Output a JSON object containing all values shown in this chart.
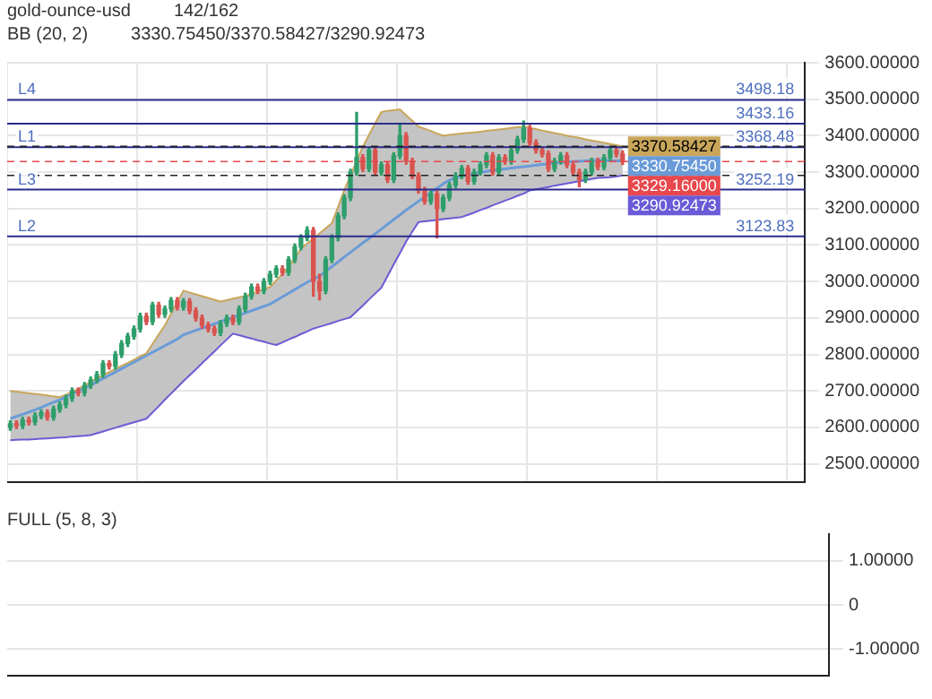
{
  "chart_data": [
    {
      "type": "candlestick",
      "annotations": [
        "gold-ounce-usd",
        "142/162",
        "BB (20, 2)",
        "3330.75450/3370.58427/3290.92473",
        {
          "text": "3498.18",
          "y": 3498.18
        },
        {
          "text": "3433.16",
          "y": 3433.16
        },
        {
          "text": "3368.48",
          "y": 3368.48
        },
        {
          "text": "3252.19",
          "y": 3252.19
        },
        {
          "text": "3123.83",
          "y": 3123.83
        }
      ],
      "categories": [
        null,
        null,
        null,
        null,
        null,
        null,
        null,
        null,
        null,
        null,
        null,
        null,
        null,
        null,
        null,
        null,
        null,
        null,
        null,
        null,
        null,
        null,
        null,
        null,
        null,
        null,
        null,
        null,
        null,
        null,
        null,
        null,
        null,
        null,
        null,
        null,
        null,
        null,
        null,
        null,
        null,
        null,
        null,
        null,
        null,
        null,
        null,
        null,
        null,
        null,
        null,
        null,
        null,
        null,
        null,
        null,
        null,
        null,
        null,
        null,
        null,
        null,
        null,
        null,
        null,
        null,
        null,
        null,
        null,
        null,
        null,
        null,
        null,
        null,
        null,
        null,
        null,
        null,
        null,
        null,
        null,
        null,
        null,
        null,
        null,
        null,
        null,
        null,
        null,
        null,
        null,
        null,
        null,
        null,
        null,
        null,
        null,
        null,
        null,
        null,
        null,
        null,
        null,
        null,
        null,
        null,
        null,
        null,
        null,
        null,
        null,
        null,
        null,
        null,
        null,
        null,
        null,
        null,
        null,
        null,
        null,
        null,
        null,
        null,
        null,
        null,
        null,
        null,
        null
      ],
      "ohlc": [
        [
          2600,
          2618,
          2592,
          2610
        ],
        [
          2610,
          2618,
          2597,
          2605
        ],
        [
          2605,
          2628,
          2597,
          2620
        ],
        [
          2620,
          2628,
          2607,
          2615
        ],
        [
          2615,
          2640,
          2607,
          2632
        ],
        [
          2632,
          2648,
          2624,
          2640
        ],
        [
          2640,
          2648,
          2620,
          2628
        ],
        [
          2628,
          2658,
          2620,
          2650
        ],
        [
          2650,
          2670,
          2642,
          2662
        ],
        [
          2662,
          2688,
          2654,
          2680
        ],
        [
          2680,
          2708,
          2672,
          2700
        ],
        [
          2700,
          2708,
          2687,
          2695
        ],
        [
          2695,
          2723,
          2687,
          2715
        ],
        [
          2715,
          2738,
          2707,
          2730
        ],
        [
          2730,
          2753,
          2722,
          2745
        ],
        [
          2745,
          2783,
          2737,
          2775
        ],
        [
          2775,
          2783,
          2760,
          2768
        ],
        [
          2768,
          2808,
          2760,
          2800
        ],
        [
          2800,
          2838,
          2792,
          2830
        ],
        [
          2830,
          2858,
          2822,
          2850
        ],
        [
          2850,
          2878,
          2842,
          2870
        ],
        [
          2870,
          2913,
          2862,
          2905
        ],
        [
          2905,
          2913,
          2882,
          2890
        ],
        [
          2890,
          2943,
          2882,
          2935
        ],
        [
          2935,
          2943,
          2902,
          2910
        ],
        [
          2910,
          2933,
          2902,
          2925
        ],
        [
          2925,
          2956,
          2917,
          2948
        ],
        [
          2948,
          2956,
          2922,
          2930
        ],
        [
          2930,
          2953,
          2922,
          2945
        ],
        [
          2945,
          2953,
          2912,
          2920
        ],
        [
          2920,
          2928,
          2892,
          2900
        ],
        [
          2900,
          2908,
          2872,
          2880
        ],
        [
          2880,
          2888,
          2862,
          2870
        ],
        [
          2870,
          2878,
          2852,
          2860
        ],
        [
          2860,
          2893,
          2852,
          2885
        ],
        [
          2885,
          2908,
          2877,
          2900
        ],
        [
          2900,
          2908,
          2882,
          2890
        ],
        [
          2890,
          2933,
          2882,
          2925
        ],
        [
          2925,
          2968,
          2917,
          2960
        ],
        [
          2960,
          2993,
          2952,
          2985
        ],
        [
          2985,
          2993,
          2967,
          2975
        ],
        [
          2975,
          3008,
          2967,
          3000
        ],
        [
          3000,
          3028,
          2992,
          3020
        ],
        [
          3020,
          3043,
          3012,
          3035
        ],
        [
          3035,
          3043,
          3017,
          3025
        ],
        [
          3025,
          3068,
          3017,
          3060
        ],
        [
          3060,
          3103,
          3052,
          3095
        ],
        [
          3095,
          3128,
          3087,
          3120
        ],
        [
          3120,
          3150,
          3112,
          3140
        ],
        [
          3140,
          3148,
          2960,
          3000
        ],
        [
          3000,
          3020,
          2950,
          2975
        ],
        [
          2975,
          3068,
          2967,
          3060
        ],
        [
          3060,
          3128,
          3052,
          3120
        ],
        [
          3120,
          3188,
          3112,
          3180
        ],
        [
          3180,
          3238,
          3172,
          3230
        ],
        [
          3230,
          3308,
          3222,
          3300
        ],
        [
          3300,
          3464,
          3292,
          3340
        ],
        [
          3340,
          3348,
          3302,
          3310
        ],
        [
          3310,
          3368,
          3302,
          3360
        ],
        [
          3360,
          3368,
          3292,
          3300
        ],
        [
          3300,
          3328,
          3292,
          3320
        ],
        [
          3320,
          3328,
          3272,
          3280
        ],
        [
          3280,
          3353,
          3272,
          3345
        ],
        [
          3345,
          3433,
          3337,
          3400
        ],
        [
          3400,
          3408,
          3322,
          3330
        ],
        [
          3330,
          3338,
          3282,
          3290
        ],
        [
          3290,
          3298,
          3242,
          3250
        ],
        [
          3250,
          3258,
          3212,
          3220
        ],
        [
          3220,
          3248,
          3212,
          3240
        ],
        [
          3240,
          3248,
          3120,
          3200
        ],
        [
          3200,
          3238,
          3192,
          3230
        ],
        [
          3230,
          3273,
          3222,
          3265
        ],
        [
          3265,
          3298,
          3257,
          3290
        ],
        [
          3290,
          3318,
          3282,
          3310
        ],
        [
          3310,
          3318,
          3267,
          3275
        ],
        [
          3275,
          3308,
          3267,
          3300
        ],
        [
          3300,
          3328,
          3292,
          3320
        ],
        [
          3320,
          3353,
          3312,
          3345
        ],
        [
          3345,
          3353,
          3292,
          3300
        ],
        [
          3300,
          3348,
          3292,
          3340
        ],
        [
          3340,
          3348,
          3322,
          3330
        ],
        [
          3330,
          3368,
          3322,
          3360
        ],
        [
          3360,
          3398,
          3352,
          3390
        ],
        [
          3390,
          3440,
          3382,
          3420
        ],
        [
          3420,
          3428,
          3372,
          3380
        ],
        [
          3380,
          3388,
          3352,
          3360
        ],
        [
          3360,
          3368,
          3342,
          3350
        ],
        [
          3350,
          3358,
          3302,
          3310
        ],
        [
          3310,
          3338,
          3302,
          3330
        ],
        [
          3330,
          3353,
          3322,
          3345
        ],
        [
          3345,
          3353,
          3312,
          3320
        ],
        [
          3320,
          3328,
          3292,
          3300
        ],
        [
          3300,
          3308,
          3260,
          3280
        ],
        [
          3280,
          3308,
          3272,
          3300
        ],
        [
          3300,
          3338,
          3292,
          3330
        ],
        [
          3330,
          3338,
          3307,
          3315
        ],
        [
          3315,
          3348,
          3307,
          3340
        ],
        [
          3340,
          3368,
          3332,
          3360
        ],
        [
          3360,
          3368,
          3342,
          3350
        ],
        [
          3350,
          3358,
          3321,
          3329.16
        ],
        null,
        null,
        null,
        null,
        null,
        null,
        null,
        null,
        null,
        null,
        null,
        null,
        null,
        null,
        null,
        null,
        null,
        null,
        null,
        null,
        null,
        null,
        null,
        null,
        null,
        null,
        null,
        null,
        null
      ],
      "series": [
        {
          "type": "line",
          "color": "#c9a65a",
          "values": [
            2700,
            2698,
            2696,
            2694,
            2692,
            2690,
            2688,
            2685,
            2683,
            2690,
            2698,
            2706,
            2715,
            2725,
            2734,
            2743,
            2752,
            2760,
            2769,
            2777,
            2786,
            2795,
            2803,
            2829,
            2855,
            2880,
            2912,
            2943,
            2975,
            2970,
            2965,
            2960,
            2955,
            2950,
            2945,
            2949,
            2953,
            2957,
            2960,
            2966,
            2972,
            2979,
            2985,
            3003,
            3021,
            3040,
            3065,
            3090,
            3104,
            3118,
            3132,
            3146,
            3160,
            3205,
            3250,
            3290,
            3330,
            3370,
            3402,
            3434,
            3465,
            3468,
            3470,
            3472,
            3456,
            3441,
            3425,
            3419,
            3413,
            3406,
            3400,
            3402,
            3404,
            3406,
            3408,
            3409,
            3411,
            3413,
            3415,
            3417,
            3419,
            3421,
            3423,
            3425,
            3421,
            3418,
            3414,
            3411,
            3407,
            3404,
            3400,
            3397,
            3394,
            3390,
            3387,
            3384,
            3381,
            3377,
            3374,
            3370.58427,
            null,
            null,
            null,
            null,
            null,
            null,
            null,
            null,
            null,
            null,
            null,
            null,
            null,
            null,
            null,
            null,
            null,
            null,
            null,
            null,
            null,
            null,
            null,
            null,
            null,
            null,
            null,
            null,
            null
          ],
          "value_labels": [
            null,
            null,
            null,
            null,
            null,
            null,
            null,
            null,
            null,
            null,
            null,
            null,
            null,
            null,
            null,
            null,
            null,
            null,
            null,
            null,
            null,
            null,
            null,
            null,
            null,
            null,
            null,
            null,
            null,
            null,
            null,
            null,
            null,
            null,
            null,
            null,
            null,
            null,
            null,
            null,
            null,
            null,
            null,
            null,
            null,
            null,
            null,
            null,
            null,
            null,
            null,
            null,
            null,
            null,
            null,
            null,
            null,
            null,
            null,
            null,
            null,
            null,
            null,
            null,
            null,
            null,
            null,
            null,
            null,
            null,
            null,
            null,
            null,
            null,
            null,
            null,
            null,
            null,
            null,
            null,
            null,
            null,
            null,
            null,
            null,
            null,
            null,
            null,
            null,
            null,
            null,
            null,
            null,
            null,
            null,
            null,
            null,
            null,
            null,
            "3370.58427",
            null,
            null,
            null,
            null,
            null,
            null,
            null,
            null,
            null,
            null,
            null,
            null,
            null,
            null,
            null,
            null,
            null,
            null,
            null,
            null,
            null,
            null,
            null,
            null,
            null,
            null,
            null,
            null,
            null
          ]
        },
        {
          "type": "line",
          "color": "#6a9bd8",
          "upper": [
            2700,
            2698,
            2696,
            2694,
            2692,
            2690,
            2688,
            2685,
            2683,
            2690,
            2698,
            2706,
            2715,
            2725,
            2734,
            2743,
            2752,
            2760,
            2769,
            2777,
            2786,
            2795,
            2803,
            2829,
            2855,
            2880,
            2912,
            2943,
            2975,
            2970,
            2965,
            2960,
            2955,
            2950,
            2945,
            2949,
            2953,
            2957,
            2960,
            2966,
            2972,
            2979,
            2985,
            3003,
            3021,
            3040,
            3065,
            3090,
            3104,
            3118,
            3132,
            3146,
            3160,
            3205,
            3250,
            3290,
            3330,
            3370,
            3402,
            3434,
            3465,
            3468,
            3470,
            3472,
            3456,
            3441,
            3425,
            3419,
            3413,
            3406,
            3400,
            3402,
            3404,
            3406,
            3408,
            3409,
            3411,
            3413,
            3415,
            3417,
            3419,
            3421,
            3423,
            3425,
            3421,
            3418,
            3414,
            3411,
            3407,
            3404,
            3400,
            3397,
            3394,
            3390,
            3387,
            3384,
            3381,
            3377,
            3374,
            3370.58427,
            null,
            null,
            null,
            null,
            null,
            null,
            null,
            null,
            null,
            null,
            null,
            null,
            null,
            null,
            null,
            null,
            null,
            null,
            null,
            null,
            null,
            null,
            null,
            null,
            null,
            null,
            null,
            null,
            null
          ],
          "lower": [
            2565,
            2566,
            2567,
            2567,
            2568,
            2569,
            2570,
            2571,
            2572,
            2573,
            2575,
            2576,
            2577,
            2579,
            2584,
            2589,
            2594,
            2599,
            2604,
            2609,
            2614,
            2619,
            2624,
            2641,
            2658,
            2676,
            2693,
            2710,
            2727,
            2743,
            2759,
            2776,
            2792,
            2808,
            2825,
            2841,
            2857,
            2853,
            2848,
            2844,
            2839,
            2835,
            2830,
            2826,
            2833,
            2841,
            2848,
            2856,
            2863,
            2871,
            2876,
            2881,
            2886,
            2892,
            2897,
            2902,
            2918,
            2934,
            2951,
            2967,
            2983,
            3015,
            3047,
            3078,
            3110,
            3137,
            3163,
            3165,
            3167,
            3169,
            3171,
            3173,
            3175,
            3177,
            3183,
            3189,
            3196,
            3202,
            3209,
            3215,
            3222,
            3228,
            3235,
            3241,
            3250,
            3253,
            3256,
            3259,
            3263,
            3266,
            3269,
            3272,
            3275,
            3278,
            3281,
            3284,
            3285,
            3286,
            3288,
            3290.92473,
            null,
            null,
            null,
            null,
            null,
            null,
            null,
            null,
            null,
            null,
            null,
            null,
            null,
            null,
            null,
            null,
            null,
            null,
            null,
            null,
            null,
            null,
            null,
            null,
            null,
            null,
            null,
            null,
            null
          ],
          "values": [
            2624,
            2630,
            2636,
            2642,
            2648,
            2655,
            2662,
            2669,
            2676,
            2684,
            2692,
            2700,
            2708,
            2716,
            2725,
            2734,
            2743,
            2752,
            2761,
            2770,
            2779,
            2788,
            2797,
            2806,
            2815,
            2824,
            2833,
            2842,
            2854,
            2860,
            2866,
            2872,
            2878,
            2884,
            2890,
            2896,
            2902,
            2908,
            2914,
            2920,
            2926,
            2932,
            2938,
            2948,
            2958,
            2968,
            2978,
            2988,
            2998,
            3007,
            3015,
            3028,
            3041,
            3054,
            3067,
            3080,
            3093,
            3106,
            3118,
            3131,
            3144,
            3157,
            3170,
            3183,
            3196,
            3208,
            3220,
            3232,
            3244,
            3256,
            3268,
            3278,
            3285,
            3290,
            3293,
            3296,
            3299,
            3302,
            3305,
            3307,
            3309,
            3311,
            3313,
            3315,
            3317,
            3319,
            3321,
            3323,
            3325,
            3327,
            3328,
            3329,
            3330,
            3331,
            3332,
            3332,
            3332,
            3331,
            3331,
            3330.7545,
            null,
            null,
            null,
            null,
            null,
            null,
            null,
            null,
            null,
            null,
            null,
            null,
            null,
            null,
            null,
            null,
            null,
            null,
            null,
            null,
            null,
            null,
            null,
            null,
            null,
            null,
            null,
            null,
            null
          ],
          "value_labels": [
            null,
            null,
            null,
            null,
            null,
            null,
            null,
            null,
            null,
            null,
            null,
            null,
            null,
            null,
            null,
            null,
            null,
            null,
            null,
            null,
            null,
            null,
            null,
            null,
            null,
            null,
            null,
            null,
            null,
            null,
            null,
            null,
            null,
            null,
            null,
            null,
            null,
            null,
            null,
            null,
            null,
            null,
            null,
            null,
            null,
            null,
            null,
            null,
            null,
            null,
            null,
            null,
            null,
            null,
            null,
            null,
            null,
            null,
            null,
            null,
            null,
            null,
            null,
            null,
            null,
            null,
            null,
            null,
            null,
            null,
            null,
            null,
            null,
            null,
            null,
            null,
            null,
            null,
            null,
            null,
            null,
            null,
            null,
            null,
            null,
            null,
            null,
            null,
            null,
            null,
            null,
            null,
            null,
            null,
            null,
            null,
            null,
            null,
            null,
            "3330.75450",
            null,
            null,
            null,
            null,
            null,
            null,
            null,
            null,
            null,
            null,
            null,
            null,
            null,
            null,
            null,
            null,
            null,
            null,
            null,
            null,
            null,
            null,
            null,
            null,
            null,
            null,
            null,
            null,
            null
          ]
        },
        {
          "type": "line",
          "color": "#6b5bd6",
          "values": [
            2565,
            2566,
            2567,
            2567,
            2568,
            2569,
            2570,
            2571,
            2572,
            2573,
            2575,
            2576,
            2577,
            2579,
            2584,
            2589,
            2594,
            2599,
            2604,
            2609,
            2614,
            2619,
            2624,
            2641,
            2658,
            2676,
            2693,
            2710,
            2727,
            2743,
            2759,
            2776,
            2792,
            2808,
            2825,
            2841,
            2857,
            2853,
            2848,
            2844,
            2839,
            2835,
            2830,
            2826,
            2833,
            2841,
            2848,
            2856,
            2863,
            2871,
            2876,
            2881,
            2886,
            2892,
            2897,
            2902,
            2918,
            2934,
            2951,
            2967,
            2983,
            3015,
            3047,
            3078,
            3110,
            3137,
            3163,
            3165,
            3167,
            3169,
            3171,
            3173,
            3175,
            3177,
            3183,
            3189,
            3196,
            3202,
            3209,
            3215,
            3222,
            3228,
            3235,
            3241,
            3250,
            3253,
            3256,
            3259,
            3263,
            3266,
            3269,
            3272,
            3275,
            3278,
            3281,
            3284,
            3285,
            3286,
            3288,
            3290.92473,
            null,
            null,
            null,
            null,
            null,
            null,
            null,
            null,
            null,
            null,
            null,
            null,
            null,
            null,
            null,
            null,
            null,
            null,
            null,
            null,
            null,
            null,
            null,
            null,
            null,
            null,
            null,
            null,
            null
          ],
          "value_labels": [
            null,
            null,
            null,
            null,
            null,
            null,
            null,
            null,
            null,
            null,
            null,
            null,
            null,
            null,
            null,
            null,
            null,
            null,
            null,
            null,
            null,
            null,
            null,
            null,
            null,
            null,
            null,
            null,
            null,
            null,
            null,
            null,
            null,
            null,
            null,
            null,
            null,
            null,
            null,
            null,
            null,
            null,
            null,
            null,
            null,
            null,
            null,
            null,
            null,
            null,
            null,
            null,
            null,
            null,
            null,
            null,
            null,
            null,
            null,
            null,
            null,
            null,
            null,
            null,
            null,
            null,
            null,
            null,
            null,
            null,
            null,
            null,
            null,
            null,
            null,
            null,
            null,
            null,
            null,
            null,
            null,
            null,
            null,
            null,
            null,
            null,
            null,
            null,
            null,
            null,
            null,
            null,
            null,
            null,
            null,
            null,
            null,
            null,
            null,
            "3290.92473",
            null,
            null,
            null,
            null,
            null,
            null,
            null,
            null,
            null,
            null,
            null,
            null,
            null,
            null,
            null,
            null,
            null,
            null,
            null,
            null,
            null,
            null,
            null,
            null,
            null,
            null,
            null,
            null,
            null
          ]
        }
      ],
      "ylim": [
        2450,
        3600
      ],
      "yticks": [
        {
          "value": 2500,
          "label": "2500.00000"
        },
        {
          "value": 2600,
          "label": "2600.00000"
        },
        {
          "value": 2700,
          "label": "2700.00000"
        },
        {
          "value": 2800,
          "label": "2800.00000"
        },
        {
          "value": 2900,
          "label": "2900.00000"
        },
        {
          "value": 3000,
          "label": "3000.00000"
        },
        {
          "value": 3100,
          "label": "3100.00000"
        },
        {
          "value": 3200,
          "label": "3200.00000"
        },
        {
          "value": 3300,
          "label": "3300.00000"
        },
        {
          "value": 3400,
          "label": "3400.00000"
        },
        {
          "value": 3500,
          "label": "3500.00000"
        },
        {
          "value": 3600,
          "label": "3600.00000"
        }
      ],
      "ref_lines": [
        {
          "axis": "y",
          "value": 3498.18,
          "label": "L4"
        },
        {
          "axis": "y",
          "value": 3433.16
        },
        {
          "axis": "y",
          "value": 3368.48,
          "label": "L1"
        },
        {
          "axis": "y",
          "value": 3252.19,
          "label": "L3"
        },
        {
          "axis": "y",
          "value": 3123.83,
          "label": "L2"
        },
        {
          "axis": "y",
          "value": 3370.58427,
          "line_style": "dashed"
        },
        {
          "axis": "y",
          "value": 3329.16,
          "label": "3329.16000",
          "color": "#e8474c",
          "line_style": "dashed"
        },
        {
          "axis": "y",
          "value": 3290.92473,
          "line_style": "dashed"
        }
      ],
      "grid": true,
      "legend": false,
      "marker": "none",
      "tick_labels": "y"
    },
    {
      "type": "other",
      "title": "FULL (5, 8, 3)",
      "annotations": [
        "1.00000",
        "0",
        "-1.00000"
      ]
    }
  ]
}
